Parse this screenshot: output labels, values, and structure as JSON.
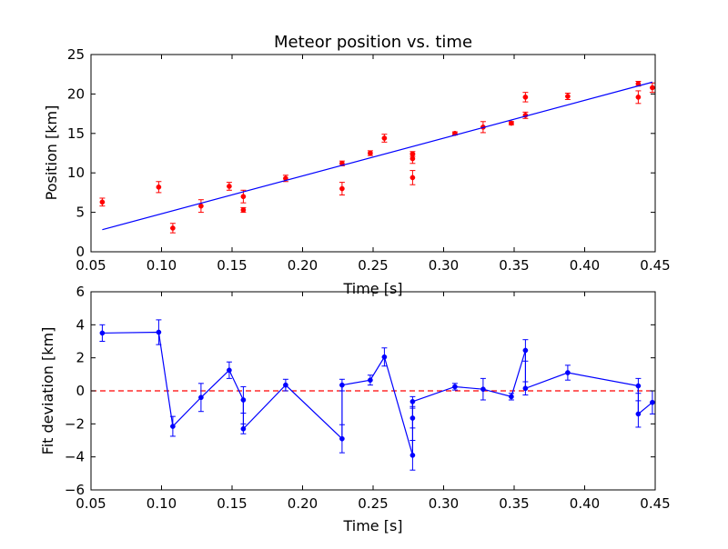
{
  "chart_data": [
    {
      "type": "scatter",
      "title": "Meteor position vs. time",
      "xlabel": "Time [s]",
      "ylabel": "Position [km]",
      "xlim": [
        0.05,
        0.45
      ],
      "ylim": [
        0,
        25
      ],
      "xticks": [
        0.05,
        0.1,
        0.15,
        0.2,
        0.25,
        0.3,
        0.35,
        0.4,
        0.45
      ],
      "xtick_labels": [
        "0.05",
        "0.10",
        "0.15",
        "0.20",
        "0.25",
        "0.30",
        "0.35",
        "0.40",
        "0.45"
      ],
      "yticks": [
        0,
        5,
        10,
        15,
        20,
        25
      ],
      "ytick_labels": [
        "0",
        "5",
        "10",
        "15",
        "20",
        "25"
      ],
      "grid": false,
      "series": [
        {
          "kind": "points-with-errorbars",
          "color": "#ff0000",
          "points": [
            {
              "x": 0.058,
              "y": 6.3,
              "err": 0.5
            },
            {
              "x": 0.098,
              "y": 8.2,
              "err": 0.7
            },
            {
              "x": 0.108,
              "y": 3.0,
              "err": 0.6
            },
            {
              "x": 0.128,
              "y": 5.8,
              "err": 0.8
            },
            {
              "x": 0.148,
              "y": 8.3,
              "err": 0.5
            },
            {
              "x": 0.158,
              "y": 7.0,
              "err": 0.8
            },
            {
              "x": 0.158,
              "y": 5.3,
              "err": 0.3
            },
            {
              "x": 0.188,
              "y": 9.3,
              "err": 0.4
            },
            {
              "x": 0.228,
              "y": 11.2,
              "err": 0.3
            },
            {
              "x": 0.228,
              "y": 8.0,
              "err": 0.8
            },
            {
              "x": 0.248,
              "y": 12.5,
              "err": 0.3
            },
            {
              "x": 0.258,
              "y": 14.4,
              "err": 0.5
            },
            {
              "x": 0.278,
              "y": 12.4,
              "err": 0.3
            },
            {
              "x": 0.278,
              "y": 11.8,
              "err": 0.6
            },
            {
              "x": 0.278,
              "y": 9.4,
              "err": 0.9
            },
            {
              "x": 0.308,
              "y": 15.0,
              "err": 0.2
            },
            {
              "x": 0.328,
              "y": 15.8,
              "err": 0.7
            },
            {
              "x": 0.348,
              "y": 16.3,
              "err": 0.2
            },
            {
              "x": 0.358,
              "y": 17.3,
              "err": 0.4
            },
            {
              "x": 0.358,
              "y": 19.6,
              "err": 0.6
            },
            {
              "x": 0.388,
              "y": 19.7,
              "err": 0.4
            },
            {
              "x": 0.438,
              "y": 21.3,
              "err": 0.3
            },
            {
              "x": 0.438,
              "y": 19.6,
              "err": 0.8
            },
            {
              "x": 0.448,
              "y": 20.8,
              "err": 0.6
            }
          ]
        },
        {
          "kind": "fit-line",
          "color": "#0000ff",
          "x": [
            0.058,
            0.448
          ],
          "y": [
            2.8,
            21.5
          ]
        }
      ]
    },
    {
      "type": "line",
      "title": "",
      "xlabel": "Time [s]",
      "ylabel": "Fit deviation [km]",
      "xlim": [
        0.05,
        0.45
      ],
      "ylim": [
        -6,
        6
      ],
      "xticks": [
        0.05,
        0.1,
        0.15,
        0.2,
        0.25,
        0.3,
        0.35,
        0.4,
        0.45
      ],
      "xtick_labels": [
        "0.05",
        "0.10",
        "0.15",
        "0.20",
        "0.25",
        "0.30",
        "0.35",
        "0.40",
        "0.45"
      ],
      "yticks": [
        -6,
        -4,
        -2,
        0,
        2,
        4,
        6
      ],
      "ytick_labels": [
        "−6",
        "−4",
        "−2",
        "0",
        "2",
        "4",
        "6"
      ],
      "grid": false,
      "reference_line": {
        "y": 0,
        "color": "#ff0000",
        "style": "dashed"
      },
      "series": [
        {
          "kind": "line-points-with-errorbars",
          "color": "#0000ff",
          "points": [
            {
              "x": 0.058,
              "y": 3.5,
              "err": 0.5
            },
            {
              "x": 0.098,
              "y": 3.55,
              "err": 0.75
            },
            {
              "x": 0.108,
              "y": -2.15,
              "err": 0.6
            },
            {
              "x": 0.128,
              "y": -0.4,
              "err": 0.85
            },
            {
              "x": 0.148,
              "y": 1.25,
              "err": 0.5
            },
            {
              "x": 0.158,
              "y": -0.55,
              "err": 0.8
            },
            {
              "x": 0.158,
              "y": -2.3,
              "err": 0.3
            },
            {
              "x": 0.188,
              "y": 0.35,
              "err": 0.35
            },
            {
              "x": 0.228,
              "y": -2.9,
              "err": 0.85
            },
            {
              "x": 0.228,
              "y": 0.35,
              "err": 0.35
            },
            {
              "x": 0.248,
              "y": 0.65,
              "err": 0.3
            },
            {
              "x": 0.258,
              "y": 2.05,
              "err": 0.55
            },
            {
              "x": 0.278,
              "y": -3.9,
              "err": 0.9
            },
            {
              "x": 0.278,
              "y": -1.65,
              "err": 0.6
            },
            {
              "x": 0.278,
              "y": -0.65,
              "err": 0.3
            },
            {
              "x": 0.308,
              "y": 0.25,
              "err": 0.2
            },
            {
              "x": 0.328,
              "y": 0.1,
              "err": 0.65
            },
            {
              "x": 0.348,
              "y": -0.35,
              "err": 0.2
            },
            {
              "x": 0.358,
              "y": 2.45,
              "err": 0.65
            },
            {
              "x": 0.358,
              "y": 0.15,
              "err": 0.4
            },
            {
              "x": 0.388,
              "y": 1.1,
              "err": 0.45
            },
            {
              "x": 0.438,
              "y": 0.3,
              "err": 0.45
            },
            {
              "x": 0.438,
              "y": -1.4,
              "err": 0.8
            },
            {
              "x": 0.448,
              "y": -0.7,
              "err": 0.7
            }
          ]
        }
      ]
    }
  ]
}
